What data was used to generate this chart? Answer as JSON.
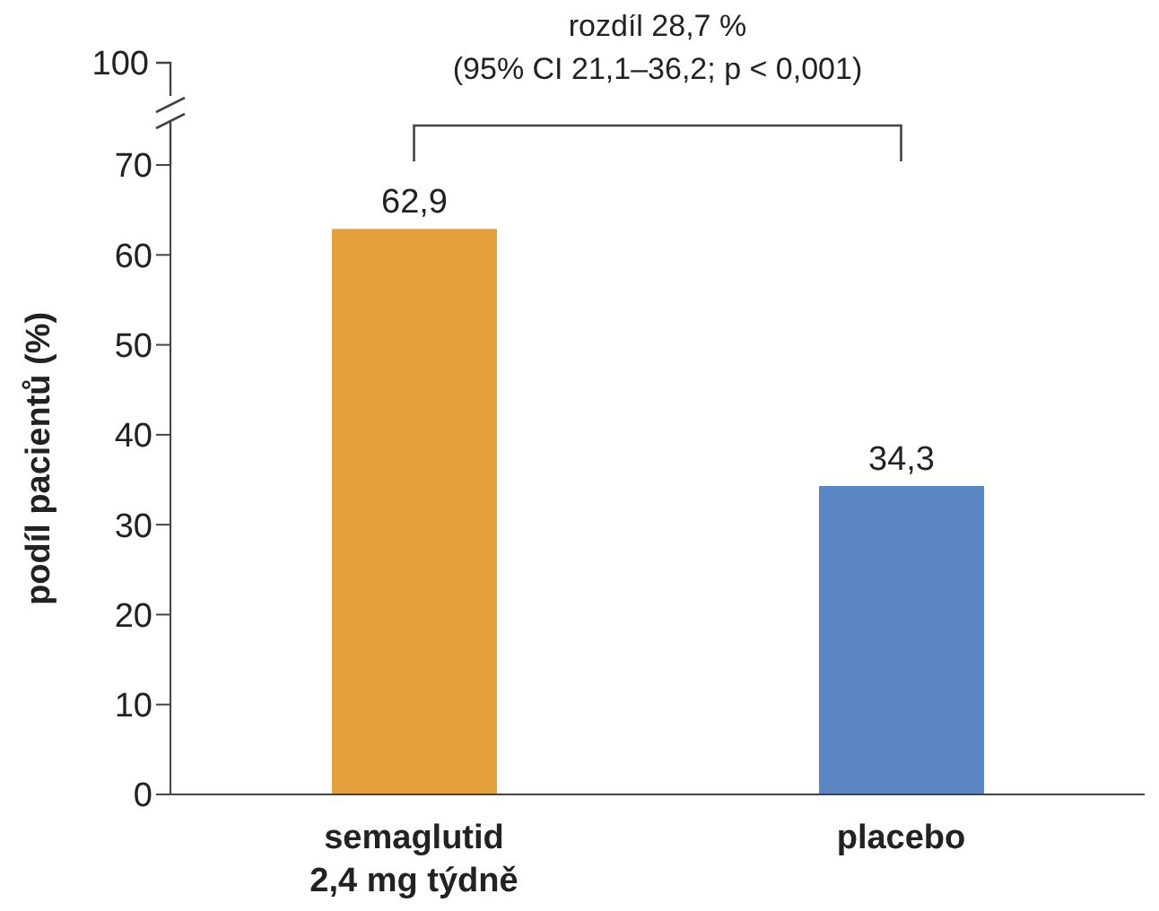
{
  "chart_data": {
    "type": "bar",
    "ylabel": "podíl pacientů (%)",
    "categories": [
      "semaglutid 2,4 mg týdně",
      "placebo"
    ],
    "values": [
      62.9,
      34.3
    ],
    "colors": [
      "#e3a03c",
      "#5b87c5"
    ],
    "value_labels": [
      "62,9",
      "34,3"
    ],
    "ylim": [
      0,
      70
    ],
    "yticks": [
      0,
      10,
      20,
      30,
      40,
      50,
      60,
      70
    ],
    "annotations": [
      "100",
      "rozdíl 28,7 %",
      "(95% CI 21,1–36,2; p < 0,001)"
    ],
    "grid": false,
    "legend": false
  }
}
